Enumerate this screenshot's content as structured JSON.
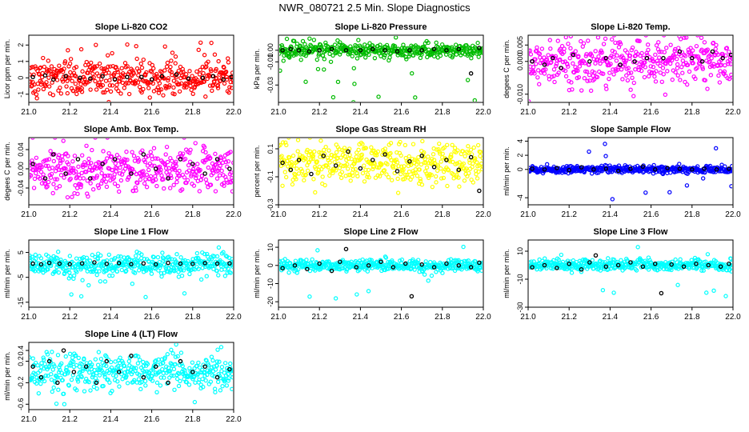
{
  "figure_title": "NWR_080721  2.5 Min. Slope Diagnostics",
  "chart_data": [
    {
      "type": "scatter",
      "title": "Slope Li-820 CO2",
      "ylabel": "Licor ppm per min.",
      "color": "#ff0000",
      "xlim": [
        21.0,
        22.0
      ],
      "xticks": [
        "21.0",
        "21.2",
        "21.4",
        "21.6",
        "21.8",
        "22.0"
      ],
      "xtick_values": [
        21.0,
        21.2,
        21.4,
        21.6,
        21.8,
        22.0
      ],
      "yticks": [
        "-1",
        "0",
        "1",
        "2"
      ],
      "ytick_values": [
        -1,
        0,
        1,
        2
      ],
      "ylim": [
        -1.5,
        2.6
      ],
      "n_points": 420,
      "spread": 0.55,
      "outlier_rate": 0.06,
      "outlier_range": [
        -1.5,
        2.5
      ],
      "black_points": [
        [
          21.02,
          0.05
        ],
        [
          21.08,
          0.15
        ],
        [
          21.12,
          -0.1
        ],
        [
          21.18,
          0.1
        ],
        [
          21.25,
          0.0
        ],
        [
          21.3,
          -0.05
        ],
        [
          21.36,
          0.1
        ],
        [
          21.42,
          -0.1
        ],
        [
          21.48,
          0.05
        ],
        [
          21.55,
          0.05
        ],
        [
          21.6,
          -0.1
        ],
        [
          21.65,
          0.1
        ],
        [
          21.72,
          0.2
        ],
        [
          21.78,
          -0.05
        ],
        [
          21.85,
          0.0
        ],
        [
          21.9,
          0.1
        ],
        [
          21.95,
          -0.1
        ],
        [
          21.99,
          0.05
        ]
      ]
    },
    {
      "type": "scatter",
      "title": "Slope Li-820 Pressure",
      "ylabel": "kPa per min.",
      "color": "#00bb00",
      "xlim": [
        21.0,
        22.0
      ],
      "xticks": [
        "21.0",
        "21.2",
        "21.4",
        "21.6",
        "21.8",
        "22.0"
      ],
      "xtick_values": [
        21.0,
        21.2,
        21.4,
        21.6,
        21.8,
        22.0
      ],
      "yticks": [
        "-0.03",
        "-0.01",
        "0.00"
      ],
      "ytick_values": [
        -0.03,
        -0.01,
        0.0
      ],
      "ylim": [
        -0.045,
        0.013
      ],
      "n_points": 420,
      "spread": 0.003,
      "outlier_rate": 0.05,
      "outlier_range": [
        -0.045,
        0.012
      ],
      "black_points": [
        [
          21.02,
          0.0
        ],
        [
          21.06,
          0.001
        ],
        [
          21.1,
          0.0
        ],
        [
          21.15,
          -0.001
        ],
        [
          21.2,
          0.0
        ],
        [
          21.26,
          0.001
        ],
        [
          21.33,
          0.0
        ],
        [
          21.4,
          0.0
        ],
        [
          21.46,
          0.001
        ],
        [
          21.52,
          0.0
        ],
        [
          21.58,
          -0.001
        ],
        [
          21.64,
          0.0
        ],
        [
          21.7,
          0.0
        ],
        [
          21.76,
          0.001
        ],
        [
          21.82,
          0.0
        ],
        [
          21.88,
          0.001
        ],
        [
          21.94,
          -0.02
        ],
        [
          21.98,
          0.002
        ]
      ]
    },
    {
      "type": "scatter",
      "title": "Slope Li-820 Temp.",
      "ylabel": "degees C per min.",
      "color": "#ff00ff",
      "xlim": [
        21.0,
        22.0
      ],
      "xticks": [
        "21.0",
        "21.2",
        "21.4",
        "21.6",
        "21.8",
        "22.0"
      ],
      "xtick_values": [
        21.0,
        21.2,
        21.4,
        21.6,
        21.8,
        22.0
      ],
      "yticks": [
        "-0.010",
        "0.000",
        "0.005"
      ],
      "ytick_values": [
        -0.01,
        0.0,
        0.005
      ],
      "ylim": [
        -0.0125,
        0.008
      ],
      "n_points": 420,
      "spread": 0.0035,
      "outlier_rate": 0.03,
      "outlier_range": [
        -0.012,
        0.007
      ],
      "black_points": [
        [
          21.02,
          0.0
        ],
        [
          21.08,
          -0.001
        ],
        [
          21.12,
          0.001
        ],
        [
          21.16,
          -0.002
        ],
        [
          21.22,
          0.002
        ],
        [
          21.3,
          0.0
        ],
        [
          21.38,
          0.001
        ],
        [
          21.45,
          -0.001
        ],
        [
          21.52,
          0.0
        ],
        [
          21.58,
          0.001
        ],
        [
          21.66,
          0.001
        ],
        [
          21.74,
          0.003
        ],
        [
          21.8,
          0.001
        ],
        [
          21.85,
          0.0
        ],
        [
          21.9,
          0.003
        ],
        [
          21.95,
          0.001
        ],
        [
          21.99,
          0.002
        ]
      ]
    },
    {
      "type": "scatter",
      "title": "Slope Amb. Box Temp.",
      "ylabel": "degees C per min.",
      "color": "#ff00ff",
      "xlim": [
        21.0,
        22.0
      ],
      "xticks": [
        "21.0",
        "21.2",
        "21.4",
        "21.6",
        "21.8",
        "22.0"
      ],
      "xtick_values": [
        21.0,
        21.2,
        21.4,
        21.6,
        21.8,
        22.0
      ],
      "yticks": [
        "-0.04",
        "0.00",
        "0.04"
      ],
      "ytick_values": [
        -0.04,
        0.0,
        0.04
      ],
      "ylim": [
        -0.075,
        0.065
      ],
      "n_points": 420,
      "spread": 0.025,
      "outlier_rate": 0.02,
      "outlier_range": [
        -0.07,
        0.06
      ],
      "black_points": [
        [
          21.02,
          0.01
        ],
        [
          21.08,
          -0.02
        ],
        [
          21.12,
          0.03
        ],
        [
          21.18,
          -0.01
        ],
        [
          21.24,
          0.02
        ],
        [
          21.3,
          -0.02
        ],
        [
          21.36,
          0.01
        ],
        [
          21.42,
          0.02
        ],
        [
          21.5,
          -0.01
        ],
        [
          21.56,
          0.03
        ],
        [
          21.62,
          0.0
        ],
        [
          21.68,
          -0.02
        ],
        [
          21.74,
          0.02
        ],
        [
          21.8,
          0.01
        ],
        [
          21.86,
          -0.01
        ],
        [
          21.92,
          0.02
        ],
        [
          21.98,
          0.0
        ]
      ]
    },
    {
      "type": "scatter",
      "title": "Slope Gas Stream RH",
      "ylabel": "percent per min.",
      "color": "#ffff00",
      "xlim": [
        21.0,
        22.0
      ],
      "xticks": [
        "21.0",
        "21.2",
        "21.4",
        "21.6",
        "21.8",
        "22.0"
      ],
      "xtick_values": [
        21.0,
        21.2,
        21.4,
        21.6,
        21.8,
        22.0
      ],
      "yticks": [
        "-0.3",
        "-0.1",
        "0.1"
      ],
      "ytick_values": [
        -0.3,
        -0.1,
        0.1
      ],
      "ylim": [
        -0.3,
        0.18
      ],
      "n_points": 420,
      "spread": 0.07,
      "outlier_rate": 0.02,
      "outlier_range": [
        -0.28,
        0.16
      ],
      "black_points": [
        [
          21.02,
          0.0
        ],
        [
          21.06,
          -0.05
        ],
        [
          21.1,
          0.02
        ],
        [
          21.16,
          -0.08
        ],
        [
          21.22,
          0.05
        ],
        [
          21.28,
          -0.02
        ],
        [
          21.34,
          0.08
        ],
        [
          21.4,
          -0.04
        ],
        [
          21.46,
          0.02
        ],
        [
          21.52,
          0.06
        ],
        [
          21.58,
          -0.06
        ],
        [
          21.64,
          0.01
        ],
        [
          21.7,
          0.05
        ],
        [
          21.76,
          -0.03
        ],
        [
          21.82,
          0.02
        ],
        [
          21.88,
          -0.05
        ],
        [
          21.94,
          0.04
        ],
        [
          21.98,
          -0.2
        ]
      ]
    },
    {
      "type": "scatter",
      "title": "Slope Sample Flow",
      "ylabel": "ml/min per min.",
      "color": "#0000ff",
      "xlim": [
        21.0,
        22.0
      ],
      "xticks": [
        "21.0",
        "21.2",
        "21.4",
        "21.6",
        "21.8",
        "22.0"
      ],
      "xtick_values": [
        21.0,
        21.2,
        21.4,
        21.6,
        21.8,
        22.0
      ],
      "yticks": [
        "-4",
        "0",
        "2",
        "4"
      ],
      "ytick_values": [
        -4,
        0,
        2,
        4
      ],
      "ylim": [
        -5,
        4.5
      ],
      "n_points": 420,
      "spread": 0.25,
      "outlier_rate": 0.02,
      "outlier_range": [
        -4.5,
        4.2
      ],
      "black_points": [
        [
          21.02,
          0.1
        ],
        [
          21.08,
          0.0
        ],
        [
          21.14,
          0.2
        ],
        [
          21.2,
          -0.1
        ],
        [
          21.26,
          0.3
        ],
        [
          21.32,
          0.0
        ],
        [
          21.38,
          0.1
        ],
        [
          21.44,
          -0.2
        ],
        [
          21.5,
          0.1
        ],
        [
          21.56,
          0.4
        ],
        [
          21.62,
          0.0
        ],
        [
          21.68,
          0.2
        ],
        [
          21.74,
          0.1
        ],
        [
          21.8,
          0.0
        ],
        [
          21.86,
          0.1
        ],
        [
          21.92,
          0.0
        ],
        [
          21.98,
          0.1
        ]
      ]
    },
    {
      "type": "scatter",
      "title": "Slope Line 1 Flow",
      "ylabel": "ml/min per min.",
      "color": "#00ffff",
      "xlim": [
        21.0,
        22.0
      ],
      "xticks": [
        "21.0",
        "21.2",
        "21.4",
        "21.6",
        "21.8",
        "22.0"
      ],
      "xtick_values": [
        21.0,
        21.2,
        21.4,
        21.6,
        21.8,
        22.0
      ],
      "yticks": [
        "-15",
        "-5",
        "5"
      ],
      "ytick_values": [
        -15,
        -5,
        5
      ],
      "ylim": [
        -17,
        10
      ],
      "n_points": 420,
      "spread": 2.2,
      "outlier_rate": 0.02,
      "outlier_range": [
        -16,
        10
      ],
      "black_points": [
        [
          21.02,
          0.5
        ],
        [
          21.06,
          0.2
        ],
        [
          21.1,
          0.8
        ],
        [
          21.15,
          0.5
        ],
        [
          21.2,
          0.3
        ],
        [
          21.26,
          0.6
        ],
        [
          21.32,
          1.0
        ],
        [
          21.38,
          0.4
        ],
        [
          21.44,
          0.7
        ],
        [
          21.5,
          0.3
        ],
        [
          21.56,
          0.6
        ],
        [
          21.62,
          0.2
        ],
        [
          21.68,
          0.8
        ],
        [
          21.74,
          0.5
        ],
        [
          21.8,
          0.4
        ],
        [
          21.86,
          0.7
        ],
        [
          21.92,
          0.5
        ],
        [
          21.98,
          0.6
        ]
      ]
    },
    {
      "type": "scatter",
      "title": "Slope Line 2 Flow",
      "ylabel": "ml/min per min.",
      "color": "#00ffff",
      "xlim": [
        21.0,
        22.0
      ],
      "xticks": [
        "21.0",
        "21.2",
        "21.4",
        "21.6",
        "21.8",
        "22.0"
      ],
      "xtick_values": [
        21.0,
        21.2,
        21.4,
        21.6,
        21.8,
        22.0
      ],
      "yticks": [
        "-20",
        "-10",
        "0",
        "10"
      ],
      "ytick_values": [
        -20,
        -10,
        0,
        10
      ],
      "ylim": [
        -23,
        14
      ],
      "n_points": 420,
      "spread": 1.6,
      "outlier_rate": 0.02,
      "outlier_range": [
        -22,
        12
      ],
      "black_points": [
        [
          21.02,
          -1.5
        ],
        [
          21.08,
          0.0
        ],
        [
          21.14,
          -2.0
        ],
        [
          21.2,
          1.0
        ],
        [
          21.26,
          -3.0
        ],
        [
          21.3,
          2.0
        ],
        [
          21.33,
          9.0
        ],
        [
          21.38,
          -1.0
        ],
        [
          21.44,
          0.0
        ],
        [
          21.5,
          2.0
        ],
        [
          21.56,
          -1.0
        ],
        [
          21.62,
          1.0
        ],
        [
          21.65,
          -17.0
        ],
        [
          21.7,
          0.5
        ],
        [
          21.76,
          -1.0
        ],
        [
          21.82,
          1.0
        ],
        [
          21.88,
          0.0
        ],
        [
          21.94,
          -1.0
        ],
        [
          21.98,
          1.5
        ]
      ]
    },
    {
      "type": "scatter",
      "title": "Slope Line 3 Flow",
      "ylabel": "ml/min per min.",
      "color": "#00ffff",
      "xlim": [
        21.0,
        22.0
      ],
      "xticks": [
        "21.0",
        "21.2",
        "21.4",
        "21.6",
        "21.8",
        "22.0"
      ],
      "xtick_values": [
        21.0,
        21.2,
        21.4,
        21.6,
        21.8,
        22.0
      ],
      "yticks": [
        "-30",
        "-10",
        "10"
      ],
      "ytick_values": [
        -30,
        -10,
        10
      ],
      "ylim": [
        -30,
        18
      ],
      "n_points": 420,
      "spread": 2.0,
      "outlier_rate": 0.02,
      "outlier_range": [
        -28,
        16
      ],
      "black_points": [
        [
          21.02,
          -1.5
        ],
        [
          21.08,
          0.0
        ],
        [
          21.14,
          -2.0
        ],
        [
          21.2,
          1.0
        ],
        [
          21.26,
          -3.0
        ],
        [
          21.3,
          2.0
        ],
        [
          21.33,
          7.0
        ],
        [
          21.38,
          -1.0
        ],
        [
          21.44,
          0.0
        ],
        [
          21.5,
          2.0
        ],
        [
          21.56,
          -1.0
        ],
        [
          21.62,
          1.0
        ],
        [
          21.65,
          -20.0
        ],
        [
          21.7,
          0.5
        ],
        [
          21.76,
          -1.0
        ],
        [
          21.82,
          1.0
        ],
        [
          21.88,
          0.0
        ],
        [
          21.94,
          -1.0
        ],
        [
          21.98,
          1.0
        ]
      ]
    },
    {
      "type": "scatter",
      "title": "Slope Line 4 (LT) Flow",
      "ylabel": "ml/min per min.",
      "color": "#00ffff",
      "xlim": [
        21.0,
        22.0
      ],
      "xticks": [
        "21.0",
        "21.2",
        "21.4",
        "21.6",
        "21.8",
        "22.0"
      ],
      "xtick_values": [
        21.0,
        21.2,
        21.4,
        21.6,
        21.8,
        22.0
      ],
      "yticks": [
        "-0.6",
        "-0.2",
        "0.2",
        "0.4"
      ],
      "ytick_values": [
        -0.6,
        -0.2,
        0.2,
        0.4
      ],
      "ylim": [
        -0.7,
        0.55
      ],
      "n_points": 420,
      "spread": 0.17,
      "outlier_rate": 0.03,
      "outlier_range": [
        -0.65,
        0.5
      ],
      "black_points": [
        [
          21.02,
          0.1
        ],
        [
          21.06,
          -0.1
        ],
        [
          21.1,
          0.2
        ],
        [
          21.14,
          -0.2
        ],
        [
          21.17,
          0.4
        ],
        [
          21.22,
          0.0
        ],
        [
          21.28,
          0.1
        ],
        [
          21.33,
          -0.2
        ],
        [
          21.38,
          0.2
        ],
        [
          21.44,
          0.0
        ],
        [
          21.5,
          0.3
        ],
        [
          21.56,
          -0.1
        ],
        [
          21.62,
          0.1
        ],
        [
          21.68,
          -0.2
        ],
        [
          21.74,
          0.2
        ],
        [
          21.8,
          0.0
        ],
        [
          21.86,
          0.1
        ],
        [
          21.92,
          -0.1
        ],
        [
          21.98,
          0.05
        ]
      ]
    }
  ]
}
